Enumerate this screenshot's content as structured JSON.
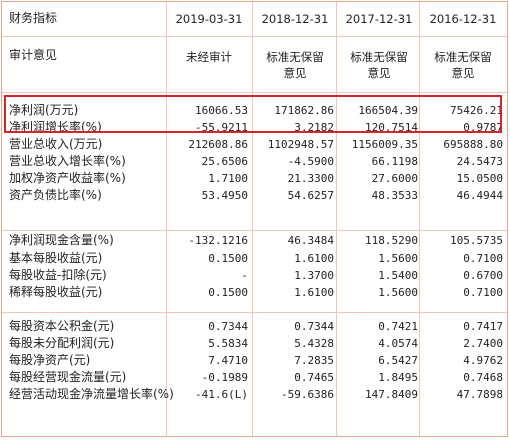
{
  "header": {
    "title": "财务指标",
    "dates": [
      "2019-03-31",
      "2018-12-31",
      "2017-12-31",
      "2016-12-31"
    ]
  },
  "audit": {
    "label": "审计意见",
    "values": [
      [
        "未经审计"
      ],
      [
        "标准无保留",
        "意见"
      ],
      [
        "标准无保留",
        "意见"
      ],
      [
        "标准无保留",
        "意见"
      ]
    ]
  },
  "rows": [
    {
      "label": "净利润(万元)",
      "values": [
        "16066.53",
        "171862.86",
        "166504.39",
        "75426.21"
      ]
    },
    {
      "label": "净利润增长率(%)",
      "values": [
        "-55.9211",
        "3.2182",
        "120.7514",
        "0.9787"
      ]
    },
    {
      "label": "营业总收入(万元)",
      "values": [
        "212608.86",
        "1102948.57",
        "1156009.35",
        "695888.80"
      ]
    },
    {
      "label": "营业总收入增长率(%)",
      "values": [
        "25.6506",
        "-4.5900",
        "66.1198",
        "24.5473"
      ]
    },
    {
      "label": "加权净资产收益率(%)",
      "values": [
        "1.7100",
        "21.3300",
        "27.6000",
        "15.0500"
      ]
    },
    {
      "label": "资产负债比率(%)",
      "values": [
        "53.4950",
        "54.6257",
        "48.3533",
        "46.4944"
      ]
    },
    {
      "label": "净利润现金含量(%)",
      "values": [
        "-132.1216",
        "46.3484",
        "118.5290",
        "105.5735"
      ]
    },
    {
      "label": "基本每股收益(元)",
      "values": [
        "0.1500",
        "1.6100",
        "1.5600",
        "0.7100"
      ]
    },
    {
      "label": "每股收益-扣除(元)",
      "values": [
        "-",
        "1.3700",
        "1.5400",
        "0.6700"
      ]
    },
    {
      "label": "稀释每股收益(元)",
      "values": [
        "0.1500",
        "1.6100",
        "1.5600",
        "0.7100"
      ]
    },
    {
      "label": "每股资本公积金(元)",
      "values": [
        "0.7344",
        "0.7344",
        "0.7421",
        "0.7417"
      ]
    },
    {
      "label": "每股未分配利润(元)",
      "values": [
        "5.5834",
        "5.4328",
        "4.0574",
        "2.7400"
      ]
    },
    {
      "label": "每股净资产(元)",
      "values": [
        "7.4710",
        "7.2835",
        "6.5427",
        "4.9762"
      ]
    },
    {
      "label": "每股经营现金流量(元)",
      "values": [
        "-0.1989",
        "0.7465",
        "1.8495",
        "0.7468"
      ]
    },
    {
      "label": "经营活动现金净流量增长率(%)",
      "values": [
        "-41.6(L)",
        "-59.6386",
        "147.8409",
        "47.7898"
      ]
    }
  ]
}
